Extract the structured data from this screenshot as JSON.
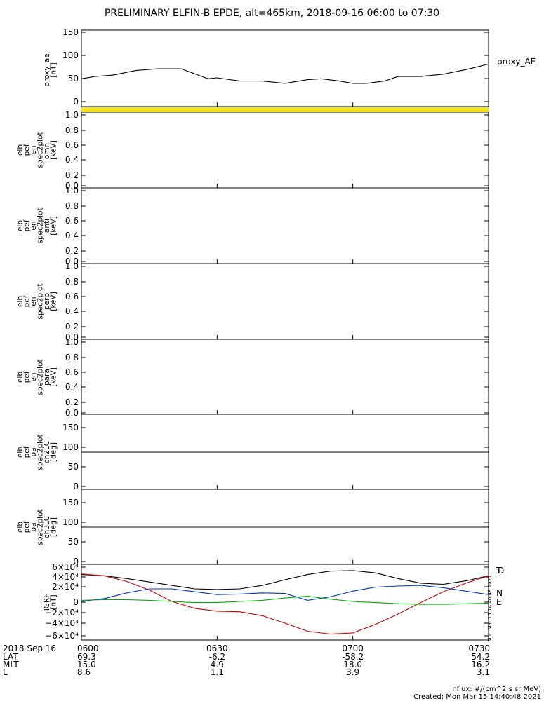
{
  "title": "PRELIMINARY ELFIN-B EPDE, alt=465km, 2018-09-16 06:00 to 07:30",
  "panels": [
    {
      "id": "ae",
      "ylabel": [
        "proxy_ae",
        "[nT]"
      ],
      "yticks": [
        "150",
        "100",
        "50",
        "0"
      ],
      "ylim": [
        0,
        150
      ],
      "legend": "proxy_AE"
    },
    {
      "id": "omni",
      "ylabel": [
        "elb",
        "pef",
        "en",
        "spec2plot",
        "omni",
        "[keV]"
      ],
      "yticks": [
        "1.0",
        "0.8",
        "0.6",
        "0.4",
        "0.2",
        "0.0"
      ],
      "ylim": [
        0,
        1
      ]
    },
    {
      "id": "anti",
      "ylabel": [
        "elb",
        "pef",
        "en",
        "spec2plot",
        "anti",
        "[keV]"
      ],
      "yticks": [
        "1.0",
        "0.8",
        "0.6",
        "0.4",
        "0.2",
        "0.0"
      ],
      "ylim": [
        0,
        1
      ]
    },
    {
      "id": "perp",
      "ylabel": [
        "elb",
        "pef",
        "en",
        "spec2plot",
        "perp",
        "[keV]"
      ],
      "yticks": [
        "1.0",
        "0.8",
        "0.6",
        "0.4",
        "0.2",
        "0.0"
      ],
      "ylim": [
        0,
        1
      ]
    },
    {
      "id": "para",
      "ylabel": [
        "elb",
        "pef",
        "en",
        "spec2plot",
        "para",
        "[keV]"
      ],
      "yticks": [
        "1.0",
        "0.8",
        "0.6",
        "0.4",
        "0.2",
        "0.0"
      ],
      "ylim": [
        0,
        1
      ]
    },
    {
      "id": "ch2lc",
      "ylabel": [
        "elb",
        "pef",
        "pa",
        "spec2plot",
        "ch2LC",
        "[deg]"
      ],
      "yticks": [
        "150",
        "100",
        "50",
        "0"
      ],
      "ylim": [
        0,
        180
      ],
      "hline": 90
    },
    {
      "id": "ch3lc",
      "ylabel": [
        "elb",
        "pef",
        "pa",
        "spec2plot",
        "ch3LC",
        "[deg]"
      ],
      "yticks": [
        "150",
        "100",
        "50",
        "0"
      ],
      "ylim": [
        0,
        180
      ],
      "hline": 90
    },
    {
      "id": "igrf",
      "ylabel": [
        "IGRF",
        "[nT]"
      ],
      "yticks": [
        "6×10⁴",
        "4×10⁴",
        "2×10⁴",
        "0",
        "−2×10⁴",
        "−4×10⁴",
        "−6×10⁴"
      ],
      "ylim": [
        -60000,
        60000
      ],
      "legend_items": [
        "T",
        "D",
        "N",
        "E"
      ]
    }
  ],
  "xaxis": {
    "ticks": [
      "0600",
      "0630",
      "0700",
      "0730"
    ],
    "rows": [
      {
        "label": "2018 Sep 16",
        "values": [
          "0600",
          "0630",
          "0700",
          "0730"
        ]
      },
      {
        "label": "LAT",
        "values": [
          "69.3",
          "-6.2",
          "-58.2",
          "54.2"
        ]
      },
      {
        "label": "MLT",
        "values": [
          "15.0",
          "4.9",
          "18.0",
          "16.2"
        ]
      },
      {
        "label": "L",
        "values": [
          "8.6",
          "1.1",
          "3.9",
          "3.1"
        ]
      }
    ]
  },
  "side_note": "Mon Mar 15 14:40:48 2021",
  "footer": {
    "line1": "nflux: #/(cm^2 s sr MeV)",
    "line2": "Created: Mon Mar 15 14:40:48 2021"
  },
  "chart_data": [
    {
      "type": "line",
      "title": "PRELIMINARY ELFIN-B EPDE, alt=465km, 2018-09-16 06:00 to 07:30",
      "ylabel": "proxy_ae [nT]",
      "ylim": [
        0,
        150
      ],
      "x_unit": "minutes after 06:00",
      "series": [
        {
          "name": "proxy_AE",
          "color": "#000000",
          "x": [
            0,
            3,
            7,
            12,
            17,
            22,
            28,
            30,
            35,
            40,
            45,
            50,
            53,
            57,
            60,
            63,
            67,
            70,
            75,
            80,
            85,
            90
          ],
          "y": [
            50,
            55,
            58,
            68,
            72,
            72,
            50,
            52,
            45,
            45,
            40,
            48,
            50,
            45,
            40,
            40,
            45,
            55,
            55,
            60,
            70,
            82
          ]
        }
      ]
    },
    {
      "type": "heatmap",
      "ylabel": "elb pef en spec2plot omni [keV]",
      "ylim": [
        0,
        1
      ],
      "values": []
    },
    {
      "type": "heatmap",
      "ylabel": "elb pef en spec2plot anti [keV]",
      "ylim": [
        0,
        1
      ],
      "values": []
    },
    {
      "type": "heatmap",
      "ylabel": "elb pef en spec2plot perp [keV]",
      "ylim": [
        0,
        1
      ],
      "values": []
    },
    {
      "type": "heatmap",
      "ylabel": "elb pef en spec2plot para [keV]",
      "ylim": [
        0,
        1
      ],
      "values": []
    },
    {
      "type": "line",
      "ylabel": "elb pef pa spec2plot ch2LC [deg]",
      "ylim": [
        0,
        180
      ],
      "series": [
        {
          "color": "#000000",
          "x": [
            0,
            90
          ],
          "y": [
            90,
            90
          ]
        }
      ]
    },
    {
      "type": "line",
      "ylabel": "elb pef pa spec2plot ch3LC [deg]",
      "ylim": [
        0,
        180
      ],
      "series": [
        {
          "color": "#000000",
          "x": [
            0,
            90
          ],
          "y": [
            90,
            90
          ]
        }
      ]
    },
    {
      "type": "line",
      "ylabel": "IGRF [nT]",
      "ylim": [
        -60000,
        60000
      ],
      "x_unit": "minutes after 06:00",
      "series": [
        {
          "name": "T",
          "color": "#000000",
          "x": [
            0,
            5,
            10,
            15,
            20,
            25,
            30,
            35,
            40,
            45,
            50,
            55,
            60,
            65,
            70,
            75,
            80,
            85,
            90
          ],
          "y": [
            47000,
            45000,
            40000,
            34000,
            28000,
            22000,
            21000,
            22000,
            28000,
            38000,
            47000,
            53000,
            54000,
            50000,
            40000,
            32000,
            30000,
            36000,
            45000
          ]
        },
        {
          "name": "D",
          "color": "#cc0000",
          "x": [
            0,
            5,
            10,
            15,
            20,
            25,
            30,
            35,
            40,
            45,
            50,
            55,
            60,
            65,
            70,
            75,
            80,
            85,
            90
          ],
          "y": [
            48000,
            45000,
            35000,
            20000,
            0,
            -12000,
            -17000,
            -18000,
            -25000,
            -38000,
            -52000,
            -57000,
            -55000,
            -40000,
            -22000,
            -2000,
            17000,
            32000,
            45000
          ]
        },
        {
          "name": "N",
          "color": "#0033cc",
          "x": [
            0,
            5,
            10,
            15,
            20,
            25,
            30,
            35,
            40,
            45,
            50,
            55,
            60,
            65,
            70,
            75,
            80,
            85,
            90
          ],
          "y": [
            0,
            5000,
            15000,
            22000,
            22000,
            17000,
            12000,
            13000,
            15000,
            14000,
            2000,
            8000,
            18000,
            25000,
            27000,
            28000,
            24000,
            18000,
            12000
          ]
        },
        {
          "name": "E",
          "color": "#00aa00",
          "x": [
            0,
            5,
            10,
            15,
            20,
            25,
            30,
            35,
            40,
            45,
            50,
            55,
            60,
            65,
            70,
            75,
            80,
            85,
            90
          ],
          "y": [
            2000,
            3000,
            3000,
            2000,
            0,
            -2000,
            -2000,
            0,
            2000,
            6000,
            9000,
            4000,
            0,
            -2000,
            -4000,
            -5000,
            -5000,
            -4000,
            -3000
          ]
        }
      ]
    }
  ]
}
